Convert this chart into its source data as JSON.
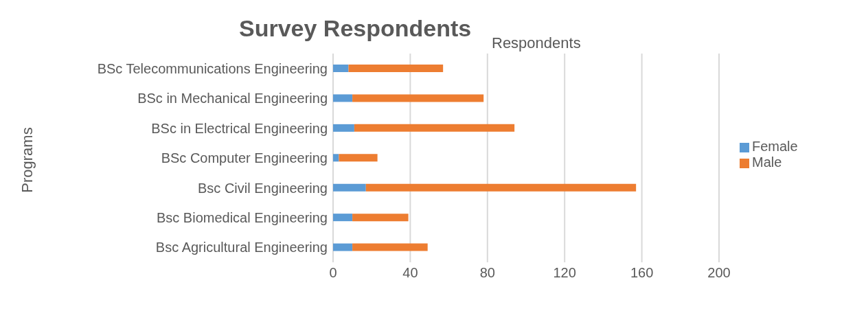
{
  "chart_data": {
    "type": "bar",
    "title": "Survey Respondents",
    "xlabel": "Respondents",
    "ylabel": "Programs",
    "orientation": "horizontal",
    "stacked": true,
    "categories": [
      "BSc Telecommunications Engineering",
      "BSc in Mechanical Engineering",
      "BSc in Electrical Engineering",
      "BSc Computer Engineering",
      "Bsc Civil Engineering",
      "Bsc Biomedical Engineering",
      "Bsc Agricultural Engineering"
    ],
    "series": [
      {
        "name": "Female",
        "color": "#5b9bd5",
        "values": [
          8,
          10,
          11,
          3,
          17,
          10,
          10
        ]
      },
      {
        "name": "Male",
        "color": "#ed7d31",
        "values": [
          49,
          68,
          83,
          20,
          140,
          29,
          39
        ]
      }
    ],
    "xlim": [
      0,
      200
    ],
    "xticks": [
      0,
      40,
      80,
      120,
      160,
      200
    ],
    "grid": "x",
    "legend": "right"
  }
}
